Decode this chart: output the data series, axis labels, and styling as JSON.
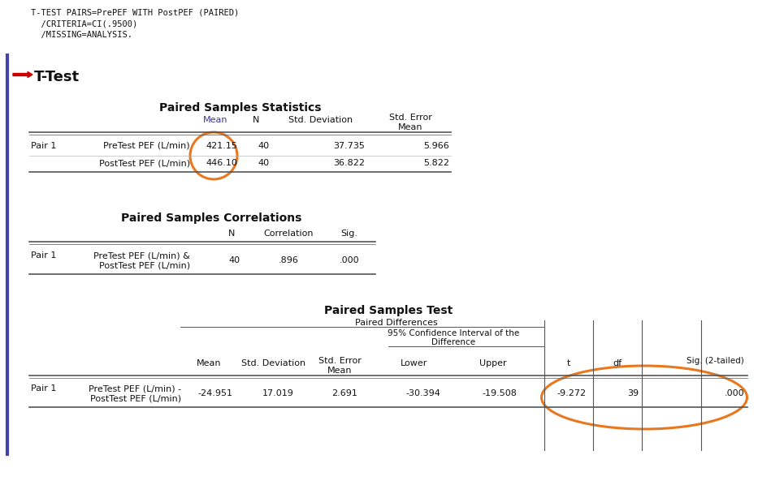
{
  "bg_color": "#ffffff",
  "syntax_lines": [
    "T-TEST PAIRS=PrePEF WITH PostPEF (PAIRED)",
    "  /CRITERIA=CI(.9500)",
    "  /MISSING=ANALYSIS."
  ],
  "section_title": "T-Test",
  "table1_title": "Paired Samples Statistics",
  "table1_rows": [
    [
      "Pair 1",
      "PreTest PEF (L/min)",
      "421.15",
      "40",
      "37.735",
      "5.966"
    ],
    [
      "",
      "PostTest PEF (L/min)",
      "446.10",
      "40",
      "36.822",
      "5.822"
    ]
  ],
  "table2_title": "Paired Samples Correlations",
  "table2_rows": [
    [
      "Pair 1",
      "PreTest PEF (L/min) &",
      "PostTest PEF (L/min)",
      "40",
      ".896",
      ".000"
    ]
  ],
  "table3_title": "Paired Samples Test",
  "table3_rows": [
    [
      "Pair 1",
      "PreTest PEF (L/min) -",
      "PostTest PEF (L/min)",
      "-24.951",
      "17.019",
      "2.691",
      "-30.394",
      "-19.508",
      "-9.272",
      "39",
      ".000"
    ]
  ],
  "orange": "#E8771E",
  "red": "#cc0000",
  "blue_line": "#4444aa",
  "gray_row": "#dcdce8",
  "dark": "#111111",
  "col_header_color": "#000000"
}
